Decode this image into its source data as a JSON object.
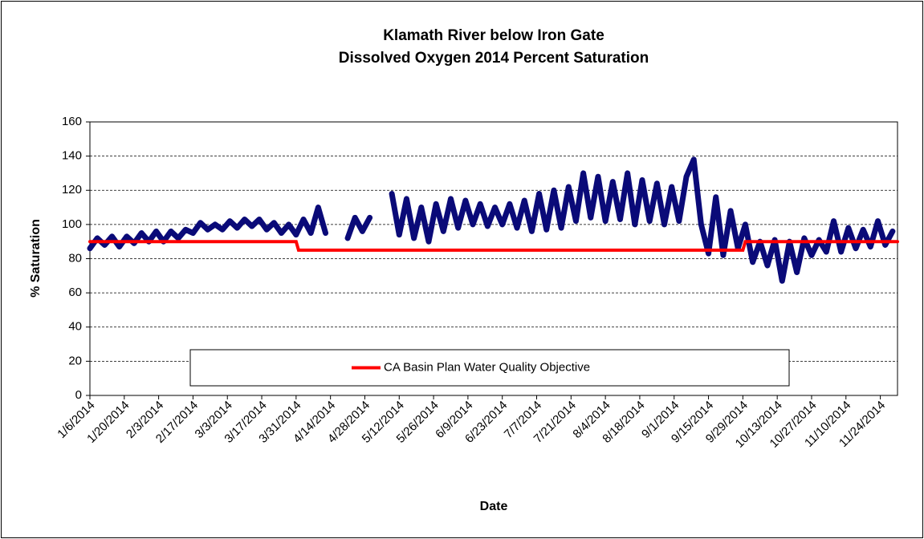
{
  "chart_data": {
    "type": "line",
    "title": [
      "Klamath River below Iron Gate",
      "Dissolved Oxygen 2014 Percent Saturation"
    ],
    "xlabel": "Date",
    "ylabel": "% Saturation",
    "xlim": [
      "1/6/2014",
      "12/1/2014"
    ],
    "xticks": [
      "1/6/2014",
      "1/20/2014",
      "2/3/2014",
      "2/17/2014",
      "3/3/2014",
      "3/17/2014",
      "3/31/2014",
      "4/14/2014",
      "4/28/2014",
      "5/12/2014",
      "5/26/2014",
      "6/9/2014",
      "6/23/2014",
      "7/7/2014",
      "7/21/2014",
      "8/4/2014",
      "8/18/2014",
      "9/1/2014",
      "9/15/2014",
      "9/29/2014",
      "10/13/2014",
      "10/27/2014",
      "11/10/2014",
      "11/24/2014"
    ],
    "ylim": [
      0,
      160
    ],
    "yticks": [
      0,
      20,
      40,
      60,
      80,
      100,
      120,
      140,
      160
    ],
    "grid": true,
    "legend": "bottom-center",
    "series": [
      {
        "color": "#0a0a78",
        "x": [
          "1/6/2014",
          "1/9/2014",
          "1/12/2014",
          "1/15/2014",
          "1/18/2014",
          "1/21/2014",
          "1/24/2014",
          "1/27/2014",
          "1/30/2014",
          "2/2/2014",
          "2/5/2014",
          "2/8/2014",
          "2/11/2014",
          "2/14/2014",
          "2/17/2014",
          "2/20/2014",
          "2/23/2014",
          "2/26/2014",
          "3/1/2014",
          "3/4/2014",
          "3/7/2014",
          "3/10/2014",
          "3/13/2014",
          "3/16/2014",
          "3/19/2014",
          "3/22/2014",
          "3/25/2014",
          "3/28/2014",
          "3/31/2014",
          "4/3/2014",
          "4/6/2014",
          "4/9/2014",
          "4/12/2014",
          "4/15/2014",
          "4/18/2014",
          "4/21/2014",
          "4/24/2014",
          "4/27/2014",
          "4/30/2014",
          "5/3/2014",
          "5/6/2014",
          "5/9/2014",
          "5/12/2014",
          "5/15/2014",
          "5/18/2014",
          "5/21/2014",
          "5/24/2014",
          "5/27/2014",
          "5/30/2014",
          "6/2/2014",
          "6/5/2014",
          "6/8/2014",
          "6/11/2014",
          "6/14/2014",
          "6/17/2014",
          "6/20/2014",
          "6/23/2014",
          "6/26/2014",
          "6/29/2014",
          "7/2/2014",
          "7/5/2014",
          "7/8/2014",
          "7/11/2014",
          "7/14/2014",
          "7/17/2014",
          "7/20/2014",
          "7/23/2014",
          "7/26/2014",
          "7/29/2014",
          "8/1/2014",
          "8/4/2014",
          "8/7/2014",
          "8/10/2014",
          "8/13/2014",
          "8/16/2014",
          "8/19/2014",
          "8/22/2014",
          "8/25/2014",
          "8/28/2014",
          "8/31/2014",
          "9/3/2014",
          "9/6/2014",
          "9/9/2014",
          "9/12/2014",
          "9/15/2014",
          "9/18/2014",
          "9/21/2014",
          "9/24/2014",
          "9/27/2014",
          "9/30/2014",
          "10/3/2014",
          "10/6/2014",
          "10/9/2014",
          "10/12/2014",
          "10/15/2014",
          "10/18/2014",
          "10/21/2014",
          "10/24/2014",
          "10/27/2014",
          "10/30/2014",
          "11/2/2014",
          "11/5/2014",
          "11/8/2014",
          "11/11/2014",
          "11/14/2014",
          "11/17/2014",
          "11/20/2014",
          "11/23/2014",
          "11/26/2014",
          "11/29/2014"
        ],
        "values": [
          86,
          92,
          88,
          93,
          87,
          93,
          89,
          95,
          90,
          96,
          90,
          96,
          92,
          97,
          95,
          101,
          97,
          100,
          97,
          102,
          98,
          103,
          99,
          103,
          97,
          101,
          95,
          100,
          94,
          103,
          95,
          110,
          95,
          null,
          null,
          92,
          104,
          96,
          104,
          null,
          null,
          118,
          94,
          115,
          92,
          110,
          90,
          112,
          96,
          115,
          98,
          114,
          100,
          112,
          99,
          110,
          100,
          112,
          98,
          114,
          96,
          118,
          97,
          120,
          98,
          122,
          102,
          130,
          104,
          128,
          102,
          125,
          103,
          130,
          100,
          126,
          102,
          124,
          100,
          122,
          102,
          128,
          138,
          100,
          83,
          116,
          82,
          108,
          86,
          100,
          78,
          90,
          76,
          91,
          67,
          90,
          72,
          92,
          82,
          91,
          84,
          102,
          84,
          98,
          86,
          97,
          87,
          102,
          88,
          96
        ]
      },
      {
        "name": "CA Basin Plan Water Quality Objective",
        "color": "#ff0000",
        "x": [
          "1/6/2014",
          "3/31/2014",
          "4/1/2014",
          "9/29/2014",
          "9/30/2014",
          "12/1/2014"
        ],
        "values": [
          90,
          90,
          85,
          85,
          90,
          90
        ]
      }
    ]
  }
}
